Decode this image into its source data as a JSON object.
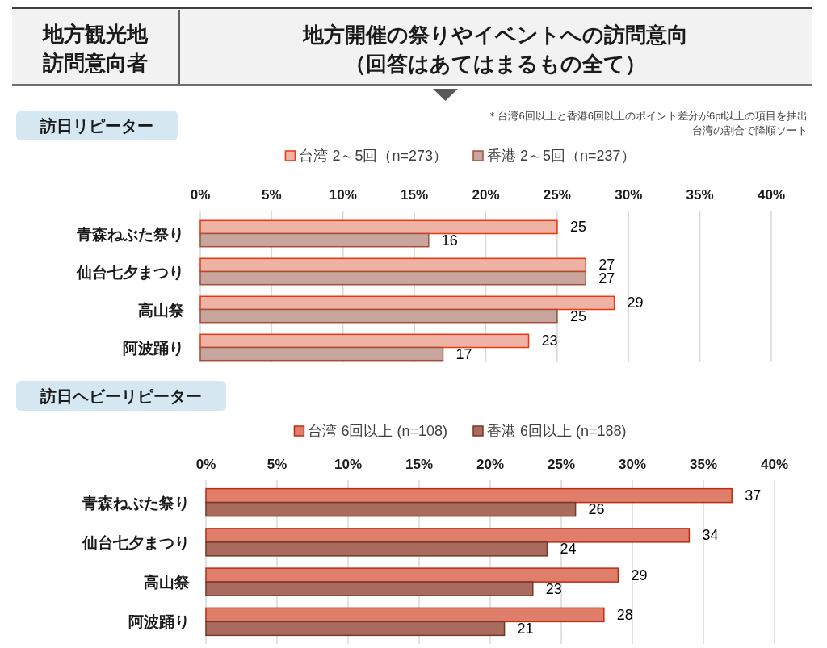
{
  "chart_data": [
    {
      "type": "other",
      "title": "地方開催の祭りやイベントへの訪問意向",
      "subtitle": "（回答はあてはまるもの全て）",
      "annotations": [
        "地方観光地",
        "訪問意向者"
      ]
    },
    {
      "type": "bar",
      "orientation": "horizontal",
      "title": "訪日リピーター",
      "annotations": [
        "＊台湾6回以上と香港6回以上のポイント差分が6pt以上の項目を抽出",
        "台湾の割合で降順ソート"
      ],
      "categories": [
        "青森ねぶた祭り",
        "仙台七夕まつり",
        "高山祭",
        "阿波踊り"
      ],
      "series": [
        {
          "name": "台湾 2～5回（n=273）",
          "color": "#efb3a6",
          "values": [
            25,
            27,
            29,
            23
          ]
        },
        {
          "name": "香港 2～5回（n=237）",
          "color": "#c9a69d",
          "values": [
            16,
            27,
            25,
            17
          ]
        }
      ],
      "xlim": [
        0,
        40
      ],
      "xticks": [
        {
          "value": 0,
          "label": "0%"
        },
        {
          "value": 5,
          "label": "5%"
        },
        {
          "value": 10,
          "label": "10%"
        },
        {
          "value": 15,
          "label": "15%"
        },
        {
          "value": 20,
          "label": "20%"
        },
        {
          "value": 25,
          "label": "25%"
        },
        {
          "value": 30,
          "label": "30%"
        },
        {
          "value": 35,
          "label": "35%"
        },
        {
          "value": 40,
          "label": "40%"
        }
      ],
      "grid": "x",
      "legend": "top",
      "data_labels": true
    },
    {
      "type": "bar",
      "orientation": "horizontal",
      "title": "訪日ヘビーリピーター",
      "categories": [
        "青森ねぶた祭り",
        "仙台七夕まつり",
        "高山祭",
        "阿波踊り"
      ],
      "series": [
        {
          "name": "台湾 6回以上 (n=108)",
          "color": "#df7e6a",
          "values": [
            37,
            34,
            29,
            28
          ]
        },
        {
          "name": "香港 6回以上 (n=188)",
          "color": "#a96b5d",
          "values": [
            26,
            24,
            23,
            21
          ]
        }
      ],
      "xlim": [
        0,
        40
      ],
      "xticks": [
        {
          "value": 0,
          "label": "0%"
        },
        {
          "value": 5,
          "label": "5%"
        },
        {
          "value": 10,
          "label": "10%"
        },
        {
          "value": 15,
          "label": "15%"
        },
        {
          "value": 20,
          "label": "20%"
        },
        {
          "value": 25,
          "label": "25%"
        },
        {
          "value": 30,
          "label": "30%"
        },
        {
          "value": 35,
          "label": "35%"
        },
        {
          "value": 40,
          "label": "40%"
        }
      ],
      "grid": "x",
      "legend": "top",
      "data_labels": true
    }
  ]
}
